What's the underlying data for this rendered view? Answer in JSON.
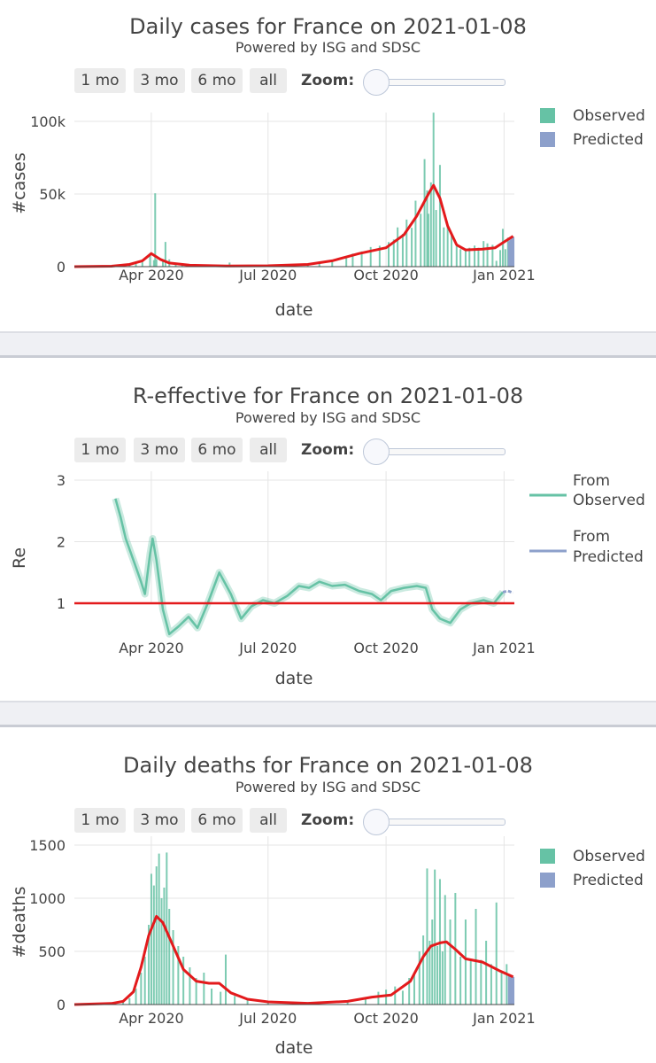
{
  "colors": {
    "observed": "#66c2a5",
    "predicted": "#8da0cb",
    "line": "#e31a1c",
    "grid": "#e5e5e5",
    "separator": "#eff0f4"
  },
  "range_buttons": [
    "1 mo",
    "3 mo",
    "6 mo",
    "all"
  ],
  "zoom_label": "Zoom:",
  "chart_data": [
    {
      "type": "bar",
      "title": "Daily cases for France on 2021-01-08",
      "subtitle": "Powered by ISG and SDSC",
      "xlabel": "date",
      "ylabel": "#cases",
      "x_ticks": [
        "Apr 2020",
        "Jul 2020",
        "Oct 2020",
        "Jan 2021"
      ],
      "y_ticks": [
        "0",
        "50k",
        "100k"
      ],
      "ylim": [
        0,
        110000
      ],
      "xlim": [
        "2020-02-01",
        "2021-01-09"
      ],
      "legend": [
        "Observed",
        "Predicted"
      ],
      "legend_position": "top-right",
      "observed_bars": [
        {
          "date": "2020-03-01",
          "value": 50
        },
        {
          "date": "2020-03-10",
          "value": 400
        },
        {
          "date": "2020-03-15",
          "value": 900
        },
        {
          "date": "2020-03-20",
          "value": 1800
        },
        {
          "date": "2020-03-25",
          "value": 3000
        },
        {
          "date": "2020-03-31",
          "value": 7500
        },
        {
          "date": "2020-04-03",
          "value": 4500
        },
        {
          "date": "2020-04-04",
          "value": 50500
        },
        {
          "date": "2020-04-05",
          "value": 5000
        },
        {
          "date": "2020-04-10",
          "value": 4000
        },
        {
          "date": "2020-04-12",
          "value": 17000
        },
        {
          "date": "2020-04-15",
          "value": 5000
        },
        {
          "date": "2020-04-20",
          "value": 2500
        },
        {
          "date": "2020-04-25",
          "value": 1500
        },
        {
          "date": "2020-05-01",
          "value": 1000
        },
        {
          "date": "2020-05-15",
          "value": 600
        },
        {
          "date": "2020-06-01",
          "value": 2800
        },
        {
          "date": "2020-06-15",
          "value": 500
        },
        {
          "date": "2020-07-01",
          "value": 600
        },
        {
          "date": "2020-07-15",
          "value": 800
        },
        {
          "date": "2020-08-01",
          "value": 1300
        },
        {
          "date": "2020-08-10",
          "value": 2500
        },
        {
          "date": "2020-08-20",
          "value": 4000
        },
        {
          "date": "2020-08-31",
          "value": 7000
        },
        {
          "date": "2020-09-05",
          "value": 9000
        },
        {
          "date": "2020-09-12",
          "value": 10500
        },
        {
          "date": "2020-09-19",
          "value": 13500
        },
        {
          "date": "2020-09-26",
          "value": 14400
        },
        {
          "date": "2020-10-03",
          "value": 16900
        },
        {
          "date": "2020-10-07",
          "value": 18700
        },
        {
          "date": "2020-10-10",
          "value": 27000
        },
        {
          "date": "2020-10-14",
          "value": 22600
        },
        {
          "date": "2020-10-17",
          "value": 32400
        },
        {
          "date": "2020-10-21",
          "value": 26700
        },
        {
          "date": "2020-10-24",
          "value": 45400
        },
        {
          "date": "2020-10-28",
          "value": 36400
        },
        {
          "date": "2020-10-31",
          "value": 74000
        },
        {
          "date": "2020-11-02",
          "value": 52500
        },
        {
          "date": "2020-11-03",
          "value": 36400
        },
        {
          "date": "2020-11-05",
          "value": 58000
        },
        {
          "date": "2020-11-07",
          "value": 106000
        },
        {
          "date": "2020-11-09",
          "value": 39000
        },
        {
          "date": "2020-11-12",
          "value": 70000
        },
        {
          "date": "2020-11-15",
          "value": 27000
        },
        {
          "date": "2020-11-18",
          "value": 28000
        },
        {
          "date": "2020-11-21",
          "value": 23000
        },
        {
          "date": "2020-11-25",
          "value": 14000
        },
        {
          "date": "2020-11-28",
          "value": 12000
        },
        {
          "date": "2020-12-02",
          "value": 11000
        },
        {
          "date": "2020-12-05",
          "value": 13000
        },
        {
          "date": "2020-12-09",
          "value": 14500
        },
        {
          "date": "2020-12-12",
          "value": 13000
        },
        {
          "date": "2020-12-16",
          "value": 17600
        },
        {
          "date": "2020-12-19",
          "value": 16000
        },
        {
          "date": "2020-12-23",
          "value": 15000
        },
        {
          "date": "2020-12-26",
          "value": 4000
        },
        {
          "date": "2020-12-29",
          "value": 11400
        },
        {
          "date": "2020-12-31",
          "value": 26000
        },
        {
          "date": "2021-01-02",
          "value": 12000
        },
        {
          "date": "2021-01-04",
          "value": 20000
        }
      ],
      "predicted_bars": [
        {
          "date": "2021-01-05",
          "value": 17500
        },
        {
          "date": "2021-01-06",
          "value": 18500
        },
        {
          "date": "2021-01-07",
          "value": 19500
        },
        {
          "date": "2021-01-08",
          "value": 20500
        }
      ],
      "smoothed_line": [
        {
          "date": "2020-02-01",
          "value": 0
        },
        {
          "date": "2020-03-01",
          "value": 300
        },
        {
          "date": "2020-03-15",
          "value": 1500
        },
        {
          "date": "2020-03-25",
          "value": 4000
        },
        {
          "date": "2020-04-01",
          "value": 9000
        },
        {
          "date": "2020-04-08",
          "value": 5000
        },
        {
          "date": "2020-04-15",
          "value": 2500
        },
        {
          "date": "2020-05-01",
          "value": 1000
        },
        {
          "date": "2020-06-01",
          "value": 400
        },
        {
          "date": "2020-07-01",
          "value": 600
        },
        {
          "date": "2020-08-01",
          "value": 1500
        },
        {
          "date": "2020-08-20",
          "value": 4000
        },
        {
          "date": "2020-09-10",
          "value": 9000
        },
        {
          "date": "2020-10-01",
          "value": 13000
        },
        {
          "date": "2020-10-15",
          "value": 22000
        },
        {
          "date": "2020-10-25",
          "value": 35000
        },
        {
          "date": "2020-11-03",
          "value": 50000
        },
        {
          "date": "2020-11-07",
          "value": 56000
        },
        {
          "date": "2020-11-12",
          "value": 47000
        },
        {
          "date": "2020-11-18",
          "value": 28000
        },
        {
          "date": "2020-11-25",
          "value": 15000
        },
        {
          "date": "2020-12-02",
          "value": 11500
        },
        {
          "date": "2020-12-15",
          "value": 12000
        },
        {
          "date": "2020-12-25",
          "value": 13000
        },
        {
          "date": "2021-01-01",
          "value": 17000
        },
        {
          "date": "2021-01-08",
          "value": 21000
        }
      ]
    },
    {
      "type": "line",
      "title": "R-effective for France on 2021-01-08",
      "subtitle": "Powered by ISG and SDSC",
      "xlabel": "date",
      "ylabel": "Re",
      "x_ticks": [
        "Apr 2020",
        "Jul 2020",
        "Oct 2020",
        "Jan 2021"
      ],
      "y_ticks": [
        "1",
        "2",
        "3"
      ],
      "ylim": [
        0.3,
        3.2
      ],
      "xlim": [
        "2020-02-01",
        "2021-01-09"
      ],
      "legend": [
        "From Observed",
        "From Predicted"
      ],
      "legend_position": "top-right",
      "reference_line": 1,
      "observed_series": [
        {
          "date": "2020-03-04",
          "value": 2.7
        },
        {
          "date": "2020-03-08",
          "value": 2.4
        },
        {
          "date": "2020-03-12",
          "value": 2.05
        },
        {
          "date": "2020-03-18",
          "value": 1.7
        },
        {
          "date": "2020-03-24",
          "value": 1.35
        },
        {
          "date": "2020-03-27",
          "value": 1.15
        },
        {
          "date": "2020-03-31",
          "value": 1.8
        },
        {
          "date": "2020-04-02",
          "value": 2.05
        },
        {
          "date": "2020-04-05",
          "value": 1.7
        },
        {
          "date": "2020-04-10",
          "value": 0.9
        },
        {
          "date": "2020-04-15",
          "value": 0.5
        },
        {
          "date": "2020-04-22",
          "value": 0.62
        },
        {
          "date": "2020-04-30",
          "value": 0.78
        },
        {
          "date": "2020-05-07",
          "value": 0.6
        },
        {
          "date": "2020-05-15",
          "value": 1.0
        },
        {
          "date": "2020-05-24",
          "value": 1.5
        },
        {
          "date": "2020-06-02",
          "value": 1.15
        },
        {
          "date": "2020-06-10",
          "value": 0.75
        },
        {
          "date": "2020-06-18",
          "value": 0.95
        },
        {
          "date": "2020-06-27",
          "value": 1.05
        },
        {
          "date": "2020-07-06",
          "value": 1.0
        },
        {
          "date": "2020-07-16",
          "value": 1.12
        },
        {
          "date": "2020-07-25",
          "value": 1.28
        },
        {
          "date": "2020-08-02",
          "value": 1.25
        },
        {
          "date": "2020-08-10",
          "value": 1.35
        },
        {
          "date": "2020-08-20",
          "value": 1.28
        },
        {
          "date": "2020-08-30",
          "value": 1.3
        },
        {
          "date": "2020-09-10",
          "value": 1.2
        },
        {
          "date": "2020-09-20",
          "value": 1.15
        },
        {
          "date": "2020-09-27",
          "value": 1.05
        },
        {
          "date": "2020-10-05",
          "value": 1.2
        },
        {
          "date": "2020-10-15",
          "value": 1.25
        },
        {
          "date": "2020-10-25",
          "value": 1.28
        },
        {
          "date": "2020-11-01",
          "value": 1.25
        },
        {
          "date": "2020-11-06",
          "value": 0.9
        },
        {
          "date": "2020-11-12",
          "value": 0.75
        },
        {
          "date": "2020-11-20",
          "value": 0.68
        },
        {
          "date": "2020-11-28",
          "value": 0.9
        },
        {
          "date": "2020-12-06",
          "value": 1.0
        },
        {
          "date": "2020-12-16",
          "value": 1.05
        },
        {
          "date": "2020-12-24",
          "value": 1.0
        },
        {
          "date": "2020-12-31",
          "value": 1.18
        }
      ],
      "predicted_series": [
        {
          "date": "2020-12-31",
          "value": 1.18
        },
        {
          "date": "2021-01-04",
          "value": 1.2
        },
        {
          "date": "2021-01-08",
          "value": 1.17
        }
      ]
    },
    {
      "type": "bar",
      "title": "Daily deaths for France on 2021-01-08",
      "subtitle": "Powered by ISG and SDSC",
      "xlabel": "date",
      "ylabel": "#deaths",
      "x_ticks": [
        "Apr 2020",
        "Jul 2020",
        "Oct 2020",
        "Jan 2021"
      ],
      "y_ticks": [
        "0",
        "500",
        "1000",
        "1500"
      ],
      "ylim": [
        0,
        1600
      ],
      "xlim": [
        "2020-02-01",
        "2021-01-09"
      ],
      "legend": [
        "Observed",
        "Predicted"
      ],
      "legend_position": "top-right",
      "observed_bars": [
        {
          "date": "2020-03-10",
          "value": 20
        },
        {
          "date": "2020-03-15",
          "value": 60
        },
        {
          "date": "2020-03-20",
          "value": 150
        },
        {
          "date": "2020-03-24",
          "value": 300
        },
        {
          "date": "2020-03-27",
          "value": 450
        },
        {
          "date": "2020-03-30",
          "value": 750
        },
        {
          "date": "2020-04-01",
          "value": 1230
        },
        {
          "date": "2020-04-03",
          "value": 1120
        },
        {
          "date": "2020-04-05",
          "value": 1300
        },
        {
          "date": "2020-04-07",
          "value": 1420
        },
        {
          "date": "2020-04-09",
          "value": 1000
        },
        {
          "date": "2020-04-11",
          "value": 1100
        },
        {
          "date": "2020-04-13",
          "value": 1430
        },
        {
          "date": "2020-04-15",
          "value": 900
        },
        {
          "date": "2020-04-18",
          "value": 700
        },
        {
          "date": "2020-04-22",
          "value": 550
        },
        {
          "date": "2020-04-26",
          "value": 450
        },
        {
          "date": "2020-05-01",
          "value": 350
        },
        {
          "date": "2020-05-06",
          "value": 250
        },
        {
          "date": "2020-05-12",
          "value": 300
        },
        {
          "date": "2020-05-18",
          "value": 150
        },
        {
          "date": "2020-05-25",
          "value": 120
        },
        {
          "date": "2020-05-29",
          "value": 470
        },
        {
          "date": "2020-06-05",
          "value": 80
        },
        {
          "date": "2020-06-15",
          "value": 40
        },
        {
          "date": "2020-07-01",
          "value": 20
        },
        {
          "date": "2020-08-01",
          "value": 15
        },
        {
          "date": "2020-09-01",
          "value": 30
        },
        {
          "date": "2020-09-15",
          "value": 60
        },
        {
          "date": "2020-09-25",
          "value": 120
        },
        {
          "date": "2020-10-01",
          "value": 140
        },
        {
          "date": "2020-10-08",
          "value": 170
        },
        {
          "date": "2020-10-14",
          "value": 130
        },
        {
          "date": "2020-10-19",
          "value": 250
        },
        {
          "date": "2020-10-23",
          "value": 300
        },
        {
          "date": "2020-10-27",
          "value": 500
        },
        {
          "date": "2020-10-30",
          "value": 650
        },
        {
          "date": "2020-11-02",
          "value": 1280
        },
        {
          "date": "2020-11-04",
          "value": 600
        },
        {
          "date": "2020-11-06",
          "value": 800
        },
        {
          "date": "2020-11-08",
          "value": 1270
        },
        {
          "date": "2020-11-10",
          "value": 550
        },
        {
          "date": "2020-11-12",
          "value": 1180
        },
        {
          "date": "2020-11-14",
          "value": 500
        },
        {
          "date": "2020-11-16",
          "value": 1030
        },
        {
          "date": "2020-11-20",
          "value": 800
        },
        {
          "date": "2020-11-24",
          "value": 1050
        },
        {
          "date": "2020-11-28",
          "value": 450
        },
        {
          "date": "2020-12-02",
          "value": 800
        },
        {
          "date": "2020-12-06",
          "value": 430
        },
        {
          "date": "2020-12-10",
          "value": 900
        },
        {
          "date": "2020-12-14",
          "value": 420
        },
        {
          "date": "2020-12-18",
          "value": 600
        },
        {
          "date": "2020-12-22",
          "value": 380
        },
        {
          "date": "2020-12-26",
          "value": 960
        },
        {
          "date": "2020-12-30",
          "value": 300
        },
        {
          "date": "2021-01-03",
          "value": 380
        }
      ],
      "predicted_bars": [
        {
          "date": "2021-01-05",
          "value": 270
        },
        {
          "date": "2021-01-06",
          "value": 265
        },
        {
          "date": "2021-01-07",
          "value": 262
        },
        {
          "date": "2021-01-08",
          "value": 260
        }
      ],
      "smoothed_line": [
        {
          "date": "2020-02-01",
          "value": 0
        },
        {
          "date": "2020-03-01",
          "value": 10
        },
        {
          "date": "2020-03-10",
          "value": 30
        },
        {
          "date": "2020-03-18",
          "value": 120
        },
        {
          "date": "2020-03-24",
          "value": 350
        },
        {
          "date": "2020-03-30",
          "value": 650
        },
        {
          "date": "2020-04-05",
          "value": 830
        },
        {
          "date": "2020-04-10",
          "value": 770
        },
        {
          "date": "2020-04-18",
          "value": 550
        },
        {
          "date": "2020-04-26",
          "value": 330
        },
        {
          "date": "2020-05-06",
          "value": 220
        },
        {
          "date": "2020-05-16",
          "value": 200
        },
        {
          "date": "2020-05-24",
          "value": 200
        },
        {
          "date": "2020-06-02",
          "value": 110
        },
        {
          "date": "2020-06-15",
          "value": 50
        },
        {
          "date": "2020-07-01",
          "value": 25
        },
        {
          "date": "2020-08-01",
          "value": 12
        },
        {
          "date": "2020-09-01",
          "value": 30
        },
        {
          "date": "2020-09-20",
          "value": 70
        },
        {
          "date": "2020-10-05",
          "value": 90
        },
        {
          "date": "2020-10-20",
          "value": 220
        },
        {
          "date": "2020-10-30",
          "value": 450
        },
        {
          "date": "2020-11-05",
          "value": 550
        },
        {
          "date": "2020-11-12",
          "value": 580
        },
        {
          "date": "2020-11-17",
          "value": 590
        },
        {
          "date": "2020-11-24",
          "value": 520
        },
        {
          "date": "2020-12-02",
          "value": 430
        },
        {
          "date": "2020-12-15",
          "value": 400
        },
        {
          "date": "2020-12-28",
          "value": 320
        },
        {
          "date": "2021-01-08",
          "value": 260
        }
      ]
    }
  ]
}
